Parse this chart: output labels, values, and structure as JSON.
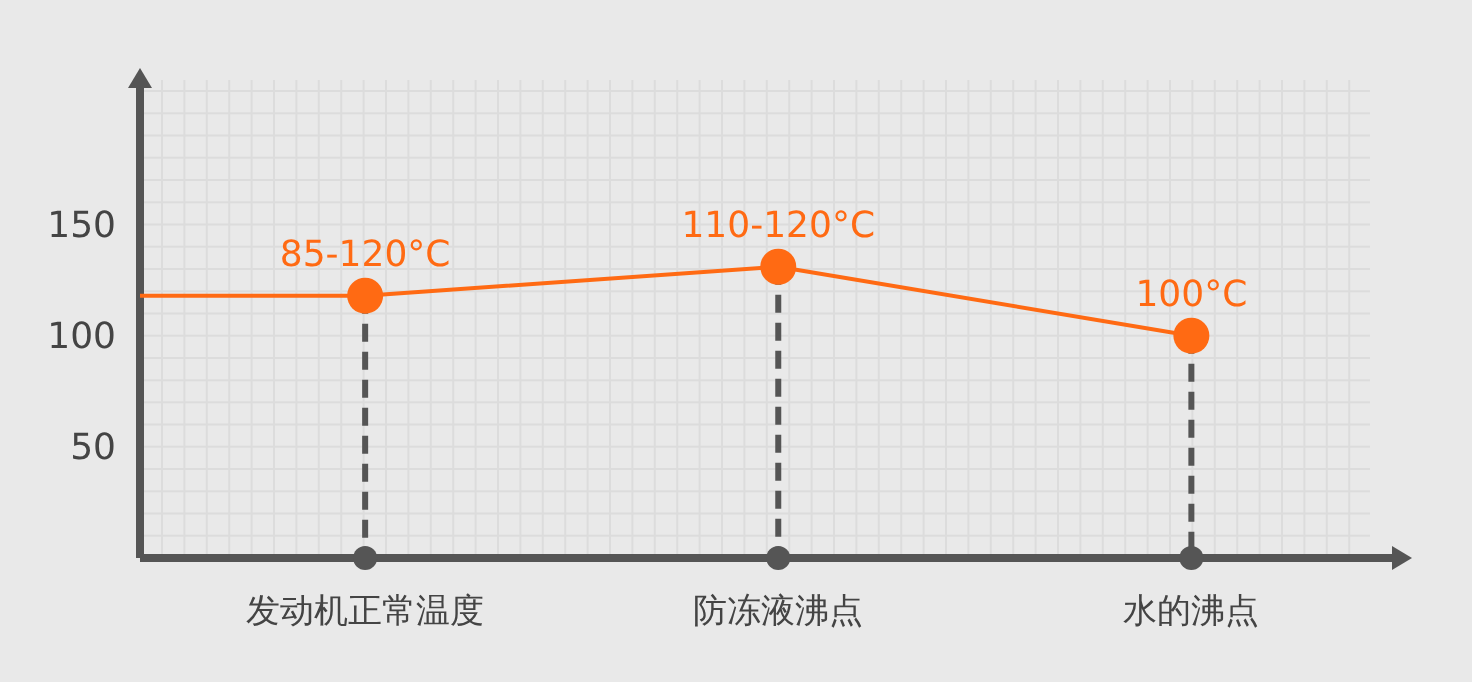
{
  "chart_data": {
    "type": "line",
    "categories": [
      null,
      "发动机正常温度",
      "防冻液沸点",
      "水的沸点"
    ],
    "values": [
      118,
      118,
      131,
      100
    ],
    "value_labels": [
      null,
      "85-120°C",
      "110-120°C",
      "100°C"
    ],
    "color": "#ff6a13",
    "marker": "circle",
    "grid": true,
    "ylim": [
      0,
      215
    ],
    "yticks": [
      {
        "value": 10,
        "label": null
      },
      {
        "value": 20,
        "label": null
      },
      {
        "value": 30,
        "label": null
      },
      {
        "value": 40,
        "label": null
      },
      50,
      {
        "value": 60,
        "label": null
      },
      {
        "value": 70,
        "label": null
      },
      {
        "value": 80,
        "label": null
      },
      {
        "value": 90,
        "label": null
      },
      100,
      {
        "value": 110,
        "label": null
      },
      {
        "value": 120,
        "label": null
      },
      {
        "value": 130,
        "label": null
      },
      {
        "value": 140,
        "label": null
      },
      150,
      {
        "value": 160,
        "label": null
      },
      {
        "value": 170,
        "label": null
      },
      {
        "value": 180,
        "label": null
      },
      {
        "value": 190,
        "label": null
      },
      {
        "value": 200,
        "label": null
      },
      {
        "value": 210,
        "label": null
      }
    ]
  }
}
